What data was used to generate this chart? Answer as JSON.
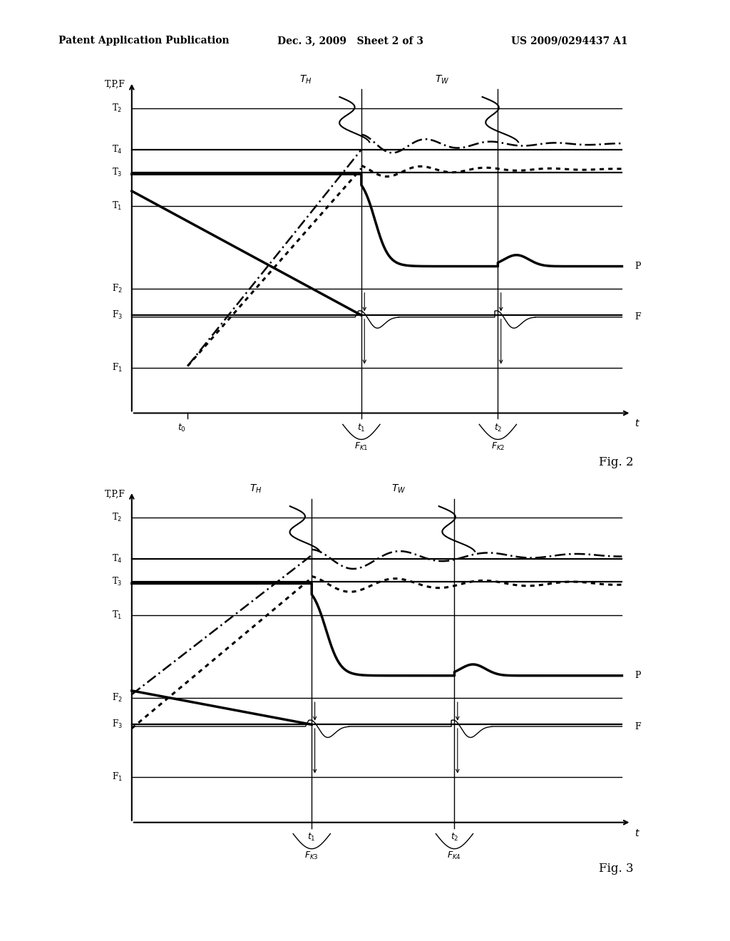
{
  "header_left": "Patent Application Publication",
  "header_mid": "Dec. 3, 2009   Sheet 2 of 3",
  "header_right": "US 2009/0294437 A1",
  "fig2_label": "Fig. 2",
  "fig3_label": "Fig. 3",
  "background": "#ffffff"
}
